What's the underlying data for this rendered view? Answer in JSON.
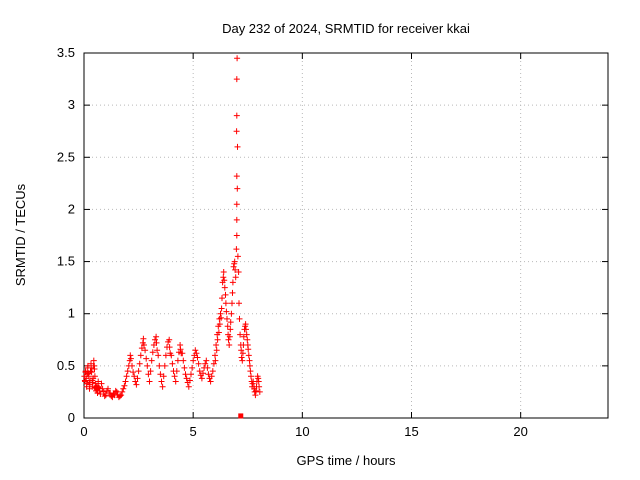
{
  "title": "Day 232 of 2024, SRMTID for receiver kkai",
  "chart_data": {
    "type": "scatter",
    "title": "Day 232 of 2024, SRMTID for receiver kkai",
    "xlabel": "GPS time / hours",
    "ylabel": "SRMTID / TECUs",
    "xlim": [
      0,
      24
    ],
    "ylim": [
      0,
      3.5
    ],
    "xticks": [
      0,
      5,
      10,
      15,
      20
    ],
    "xtick_labels": [
      "0",
      "5",
      "10",
      "15",
      "20"
    ],
    "yticks": [
      0,
      0.5,
      1,
      1.5,
      2,
      2.5,
      3,
      3.5
    ],
    "ytick_labels": [
      "0",
      "0.5",
      "1",
      "1.5",
      "2",
      "2.5",
      "3",
      "3.5"
    ],
    "grid": true,
    "legend": "none",
    "marker": "plus",
    "marker_color": "#ff0000",
    "series": [
      {
        "name": "SRMTID",
        "points": [
          [
            0.02,
            0.4
          ],
          [
            0.04,
            0.36
          ],
          [
            0.05,
            0.35
          ],
          [
            0.07,
            0.44
          ],
          [
            0.08,
            0.45
          ],
          [
            0.1,
            0.38
          ],
          [
            0.12,
            0.3
          ],
          [
            0.13,
            0.33
          ],
          [
            0.15,
            0.42
          ],
          [
            0.17,
            0.48
          ],
          [
            0.18,
            0.5
          ],
          [
            0.2,
            0.43
          ],
          [
            0.22,
            0.4
          ],
          [
            0.24,
            0.34
          ],
          [
            0.25,
            0.28
          ],
          [
            0.27,
            0.32
          ],
          [
            0.28,
            0.36
          ],
          [
            0.3,
            0.45
          ],
          [
            0.32,
            0.52
          ],
          [
            0.33,
            0.48
          ],
          [
            0.35,
            0.44
          ],
          [
            0.37,
            0.36
          ],
          [
            0.38,
            0.3
          ],
          [
            0.4,
            0.34
          ],
          [
            0.42,
            0.38
          ],
          [
            0.44,
            0.5
          ],
          [
            0.45,
            0.55
          ],
          [
            0.47,
            0.5
          ],
          [
            0.48,
            0.47
          ],
          [
            0.5,
            0.4
          ],
          [
            0.52,
            0.33
          ],
          [
            0.54,
            0.29
          ],
          [
            0.55,
            0.26
          ],
          [
            0.57,
            0.28
          ],
          [
            0.58,
            0.31
          ],
          [
            0.6,
            0.27
          ],
          [
            0.62,
            0.24
          ],
          [
            0.64,
            0.3
          ],
          [
            0.65,
            0.35
          ],
          [
            0.68,
            0.29
          ],
          [
            0.7,
            0.26
          ],
          [
            0.75,
            0.23
          ],
          [
            0.8,
            0.33
          ],
          [
            0.85,
            0.28
          ],
          [
            0.9,
            0.25
          ],
          [
            0.95,
            0.21
          ],
          [
            1.0,
            0.22
          ],
          [
            1.05,
            0.26
          ],
          [
            1.1,
            0.28
          ],
          [
            1.15,
            0.24
          ],
          [
            1.2,
            0.24
          ],
          [
            1.25,
            0.21
          ],
          [
            1.3,
            0.2
          ],
          [
            1.35,
            0.23
          ],
          [
            1.4,
            0.22
          ],
          [
            1.45,
            0.26
          ],
          [
            1.5,
            0.25
          ],
          [
            1.55,
            0.22
          ],
          [
            1.6,
            0.2
          ],
          [
            1.65,
            0.21
          ],
          [
            1.7,
            0.22
          ],
          [
            1.75,
            0.25
          ],
          [
            1.8,
            0.28
          ],
          [
            1.85,
            0.31
          ],
          [
            1.9,
            0.35
          ],
          [
            1.95,
            0.4
          ],
          [
            2.0,
            0.45
          ],
          [
            2.05,
            0.5
          ],
          [
            2.1,
            0.55
          ],
          [
            2.12,
            0.6
          ],
          [
            2.15,
            0.57
          ],
          [
            2.2,
            0.5
          ],
          [
            2.25,
            0.44
          ],
          [
            2.3,
            0.4
          ],
          [
            2.35,
            0.35
          ],
          [
            2.4,
            0.32
          ],
          [
            2.45,
            0.38
          ],
          [
            2.5,
            0.45
          ],
          [
            2.55,
            0.52
          ],
          [
            2.6,
            0.6
          ],
          [
            2.65,
            0.67
          ],
          [
            2.7,
            0.72
          ],
          [
            2.72,
            0.76
          ],
          [
            2.75,
            0.7
          ],
          [
            2.8,
            0.65
          ],
          [
            2.85,
            0.57
          ],
          [
            2.9,
            0.5
          ],
          [
            2.95,
            0.42
          ],
          [
            3.0,
            0.35
          ],
          [
            3.05,
            0.45
          ],
          [
            3.1,
            0.55
          ],
          [
            3.15,
            0.63
          ],
          [
            3.2,
            0.7
          ],
          [
            3.25,
            0.75
          ],
          [
            3.3,
            0.78
          ],
          [
            3.32,
            0.72
          ],
          [
            3.35,
            0.65
          ],
          [
            3.4,
            0.6
          ],
          [
            3.45,
            0.5
          ],
          [
            3.5,
            0.42
          ],
          [
            3.55,
            0.35
          ],
          [
            3.6,
            0.3
          ],
          [
            3.65,
            0.4
          ],
          [
            3.7,
            0.5
          ],
          [
            3.75,
            0.6
          ],
          [
            3.8,
            0.68
          ],
          [
            3.85,
            0.73
          ],
          [
            3.9,
            0.75
          ],
          [
            3.92,
            0.68
          ],
          [
            3.95,
            0.62
          ],
          [
            4.0,
            0.6
          ],
          [
            4.05,
            0.52
          ],
          [
            4.1,
            0.45
          ],
          [
            4.15,
            0.4
          ],
          [
            4.2,
            0.35
          ],
          [
            4.25,
            0.45
          ],
          [
            4.3,
            0.55
          ],
          [
            4.35,
            0.63
          ],
          [
            4.4,
            0.7
          ],
          [
            4.42,
            0.66
          ],
          [
            4.45,
            0.62
          ],
          [
            4.5,
            0.62
          ],
          [
            4.55,
            0.55
          ],
          [
            4.6,
            0.48
          ],
          [
            4.65,
            0.42
          ],
          [
            4.7,
            0.38
          ],
          [
            4.75,
            0.34
          ],
          [
            4.8,
            0.3
          ],
          [
            4.85,
            0.36
          ],
          [
            4.9,
            0.42
          ],
          [
            4.95,
            0.48
          ],
          [
            5.0,
            0.55
          ],
          [
            5.05,
            0.6
          ],
          [
            5.1,
            0.65
          ],
          [
            5.15,
            0.62
          ],
          [
            5.2,
            0.58
          ],
          [
            5.25,
            0.52
          ],
          [
            5.3,
            0.45
          ],
          [
            5.35,
            0.41
          ],
          [
            5.4,
            0.38
          ],
          [
            5.45,
            0.43
          ],
          [
            5.5,
            0.48
          ],
          [
            5.55,
            0.52
          ],
          [
            5.6,
            0.55
          ],
          [
            5.65,
            0.48
          ],
          [
            5.7,
            0.42
          ],
          [
            5.75,
            0.38
          ],
          [
            5.8,
            0.35
          ],
          [
            5.85,
            0.4
          ],
          [
            5.9,
            0.45
          ],
          [
            5.95,
            0.52
          ],
          [
            6.0,
            0.6
          ],
          [
            6.02,
            0.55
          ],
          [
            6.05,
            0.7
          ],
          [
            6.08,
            0.65
          ],
          [
            6.1,
            0.8
          ],
          [
            6.12,
            0.75
          ],
          [
            6.15,
            0.88
          ],
          [
            6.18,
            0.82
          ],
          [
            6.2,
            0.95
          ],
          [
            6.22,
            0.9
          ],
          [
            6.25,
            1.0
          ],
          [
            6.28,
            0.96
          ],
          [
            6.3,
            1.05
          ],
          [
            6.32,
            1.15
          ],
          [
            6.35,
            1.3
          ],
          [
            6.38,
            1.35
          ],
          [
            6.4,
            1.4
          ],
          [
            6.42,
            1.32
          ],
          [
            6.45,
            1.25
          ],
          [
            6.48,
            1.18
          ],
          [
            6.5,
            1.1
          ],
          [
            6.52,
            1.02
          ],
          [
            6.55,
            0.95
          ],
          [
            6.58,
            0.88
          ],
          [
            6.6,
            0.8
          ],
          [
            6.62,
            0.75
          ],
          [
            6.65,
            0.7
          ],
          [
            6.68,
            0.78
          ],
          [
            6.7,
            0.85
          ],
          [
            6.72,
            0.92
          ],
          [
            6.75,
            1.0
          ],
          [
            6.78,
            1.1
          ],
          [
            6.8,
            1.2
          ],
          [
            6.82,
            1.3
          ],
          [
            6.85,
            1.45
          ],
          [
            6.88,
            1.48
          ],
          [
            6.9,
            1.5
          ],
          [
            6.92,
            1.42
          ],
          [
            6.95,
            1.35
          ],
          [
            6.98,
            1.62
          ],
          [
            6.99,
            2.75
          ],
          [
            7.0,
            1.75
          ],
          [
            7.0,
            1.9
          ],
          [
            7.0,
            2.05
          ],
          [
            7.0,
            2.32
          ],
          [
            7.0,
            2.9
          ],
          [
            7.0,
            3.25
          ],
          [
            7.01,
            3.45
          ],
          [
            7.02,
            2.2
          ],
          [
            7.03,
            2.6
          ],
          [
            7.05,
            1.55
          ],
          [
            7.08,
            1.4
          ],
          [
            7.1,
            1.1
          ],
          [
            7.12,
            0.95
          ],
          [
            7.15,
            0.8
          ],
          [
            7.18,
            0.7
          ],
          [
            7.2,
            0.65
          ],
          [
            7.22,
            0.58
          ],
          [
            7.25,
            0.55
          ],
          [
            7.28,
            0.62
          ],
          [
            7.3,
            0.7
          ],
          [
            7.32,
            0.78
          ],
          [
            7.35,
            0.85
          ],
          [
            7.38,
            0.88
          ],
          [
            7.4,
            0.9
          ],
          [
            7.42,
            0.85
          ],
          [
            7.45,
            0.8
          ],
          [
            7.48,
            0.75
          ],
          [
            7.5,
            0.7
          ],
          [
            7.52,
            0.66
          ],
          [
            7.55,
            0.6
          ],
          [
            7.58,
            0.55
          ],
          [
            7.6,
            0.5
          ],
          [
            7.62,
            0.45
          ],
          [
            7.65,
            0.4
          ],
          [
            7.68,
            0.35
          ],
          [
            7.7,
            0.3
          ],
          [
            7.72,
            0.33
          ],
          [
            7.75,
            0.35
          ],
          [
            7.78,
            0.3
          ],
          [
            7.8,
            0.28
          ],
          [
            7.82,
            0.25
          ],
          [
            7.85,
            0.22
          ],
          [
            7.88,
            0.26
          ],
          [
            7.9,
            0.3
          ],
          [
            7.92,
            0.35
          ],
          [
            7.95,
            0.4
          ],
          [
            7.98,
            0.38
          ],
          [
            8.0,
            0.35
          ],
          [
            8.02,
            0.3
          ],
          [
            8.05,
            0.25
          ]
        ]
      }
    ],
    "square_point": [
      7.18,
      0.02
    ]
  },
  "colors": {
    "marker": "#ff0000",
    "axis": "#000000",
    "grid": "#b9b9b9",
    "background": "#ffffff"
  }
}
